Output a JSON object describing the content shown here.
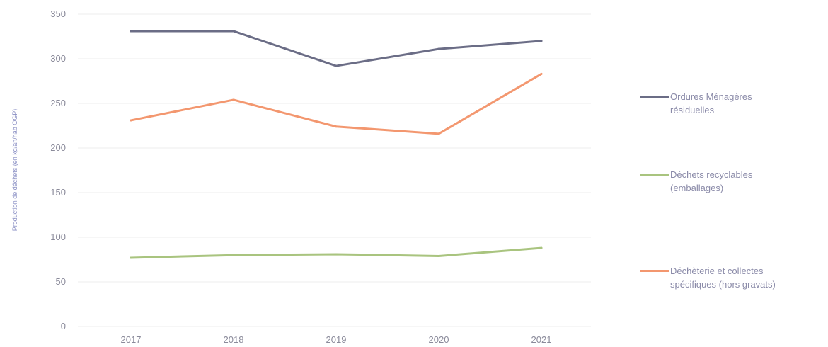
{
  "chart_data": {
    "type": "line",
    "title": "",
    "xlabel": "",
    "ylabel": "Production de déchets (en kg/an/hab OGP)",
    "categories": [
      "2017",
      "2018",
      "2019",
      "2020",
      "2021"
    ],
    "ylim": [
      0,
      350
    ],
    "yticks": [
      0,
      50,
      100,
      150,
      200,
      250,
      300,
      350
    ],
    "grid": true,
    "legend_position": "right",
    "series": [
      {
        "name": "Ordures Ménagères résiduelles",
        "color": "#6b6d86",
        "values": [
          331,
          331,
          292,
          311,
          320
        ]
      },
      {
        "name": "Déchets recyclables (emballages)",
        "color": "#a9c47f",
        "values": [
          77,
          80,
          81,
          79,
          88
        ]
      },
      {
        "name": "Déchèterie et collectes spécifiques (hors gravats)",
        "color": "#f3976f",
        "values": [
          231,
          254,
          224,
          216,
          283
        ]
      }
    ],
    "legend_lines": [
      [
        "Ordures Ménagères",
        "résiduelles"
      ],
      [
        "Déchets recyclables",
        "(emballages)"
      ],
      [
        "Déchèterie et collectes",
        "spécifiques (hors gravats)"
      ]
    ]
  }
}
